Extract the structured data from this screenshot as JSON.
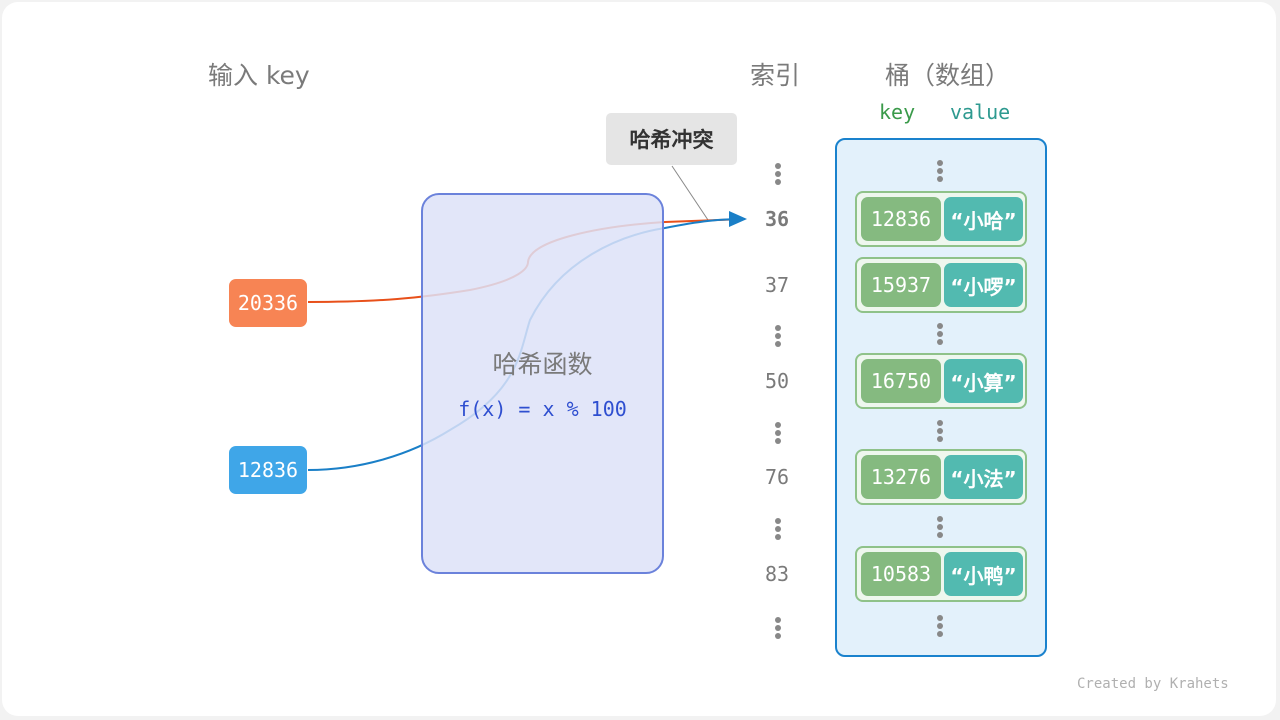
{
  "headers": {
    "input_key": "输入 key",
    "index": "索引",
    "bucket": "桶（数组）",
    "key": "key",
    "value": "value"
  },
  "collision_label": "哈希冲突",
  "hash_function": {
    "title": "哈希函数",
    "formula": "f(x) = x % 100"
  },
  "inputs": [
    {
      "value": "20336",
      "color": "#f78454"
    },
    {
      "value": "12836",
      "color": "#3fa6e8"
    }
  ],
  "indices": [
    "36",
    "37",
    "50",
    "76",
    "83"
  ],
  "buckets": [
    {
      "key": "12836",
      "value": "“小哈”"
    },
    {
      "key": "15937",
      "value": "“小啰”"
    },
    {
      "key": "16750",
      "value": "“小算”"
    },
    {
      "key": "13276",
      "value": "“小法”"
    },
    {
      "key": "10583",
      "value": "“小鸭”"
    }
  ],
  "colors": {
    "orange_line": "#e8501a",
    "blue_line": "#1a7fc7",
    "key_cell": "#85ba80",
    "value_cell": "#52bab0",
    "bucket_border": "#1a82cd"
  },
  "credit": "Created by Krahets"
}
